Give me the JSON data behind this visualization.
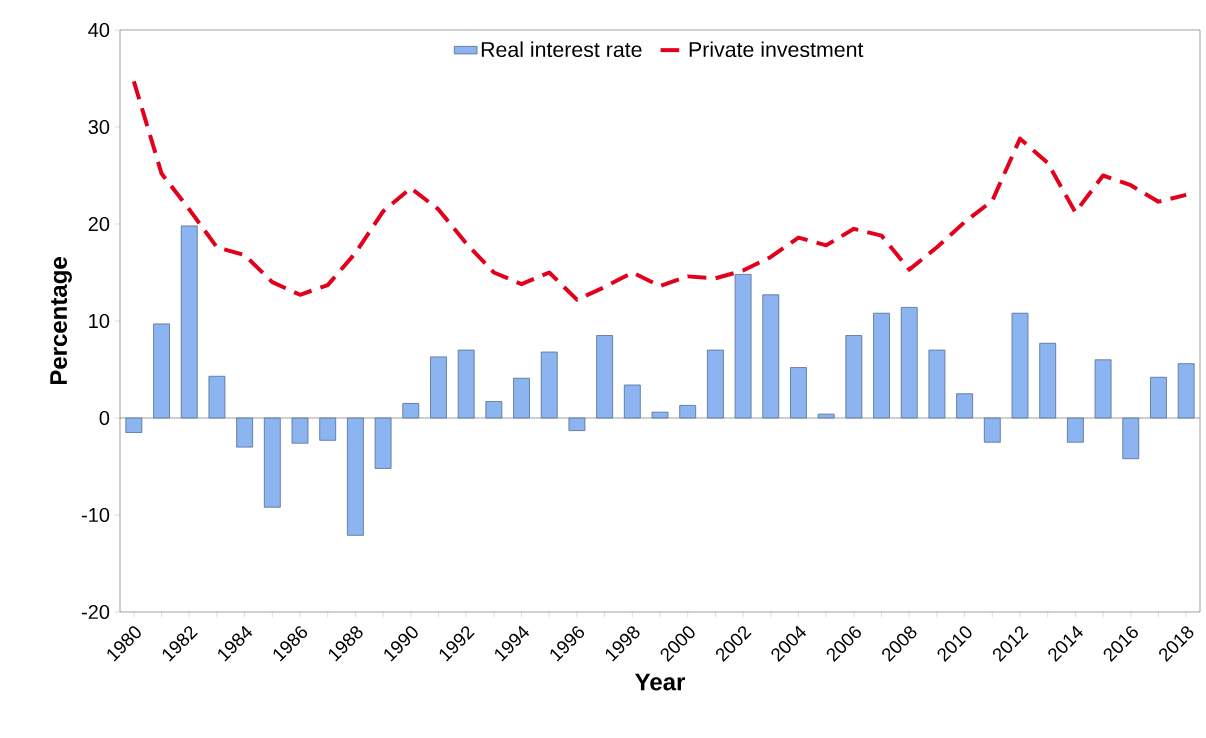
{
  "chart_data": {
    "type": "bar",
    "xlabel": "Year",
    "ylabel": "Percentage",
    "categories": [
      "1980",
      null,
      "1982",
      null,
      "1984",
      null,
      "1986",
      null,
      "1988",
      null,
      "1990",
      null,
      "1992",
      null,
      "1994",
      null,
      "1996",
      null,
      "1998",
      null,
      "2000",
      null,
      "2002",
      null,
      "2004",
      null,
      "2006",
      null,
      "2008",
      null,
      "2010",
      null,
      "2012",
      null,
      "2014",
      null,
      "2016",
      null,
      "2018"
    ],
    "series": [
      {
        "name": "Real interest rate",
        "color": "#8cb4f0",
        "values": [
          -1.5,
          9.7,
          19.8,
          4.3,
          -3.0,
          -9.2,
          -2.6,
          -2.3,
          -12.1,
          -5.2,
          1.5,
          6.3,
          7.0,
          1.7,
          4.1,
          6.8,
          -1.3,
          8.5,
          3.4,
          0.6,
          1.3,
          7.0,
          14.8,
          12.7,
          5.2,
          0.4,
          8.5,
          10.8,
          11.4,
          7.0,
          2.5,
          -2.5,
          10.8,
          7.7,
          -2.5,
          6.0,
          -4.2,
          4.2,
          5.6
        ]
      },
      {
        "name": "Private investment",
        "type": "line",
        "line_style": "dashed",
        "color": "#e3001b",
        "values": [
          34.7,
          25.2,
          21.5,
          17.6,
          16.8,
          14.0,
          12.7,
          13.7,
          17.0,
          21.3,
          23.7,
          21.5,
          18.0,
          15.0,
          13.8,
          15.0,
          12.2,
          13.5,
          15.0,
          13.6,
          14.6,
          14.4,
          15.2,
          16.6,
          18.6,
          17.8,
          19.5,
          18.8,
          15.3,
          17.6,
          20.2,
          22.4,
          28.8,
          26.3,
          21.2,
          25.0,
          24.0,
          22.3,
          23.0
        ]
      }
    ],
    "ylim": [
      -20,
      40
    ],
    "yticks": [
      -20,
      -10,
      0,
      10,
      20,
      30,
      40
    ],
    "ref_lines": [
      {
        "axis": "y",
        "value": 0
      }
    ],
    "grid": false,
    "legend": "top"
  }
}
